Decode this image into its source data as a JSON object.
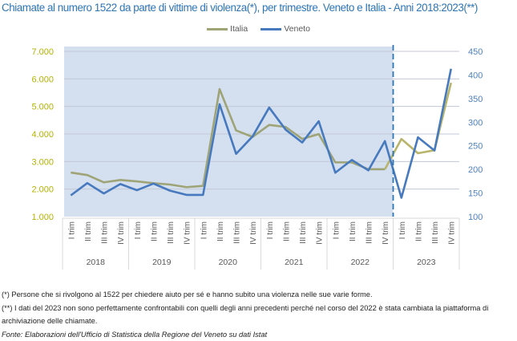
{
  "title": "Chiamate al numero 1522 da parte di vittime di violenza(*), per trimestre. Veneto e Italia - Anni 2018:2023(**)",
  "colors": {
    "title": "#2e75b6",
    "italia": "#9fa477",
    "italia_2023": "#b8b46a",
    "veneto": "#4679be",
    "shade": "#d4dff0",
    "left_axis": "#b3b300",
    "right_axis": "#4f81bd",
    "divider": "#2e75b6"
  },
  "legend": [
    {
      "label": "Italia",
      "color": "#9fa477"
    },
    {
      "label": "Veneto",
      "color": "#4679be"
    }
  ],
  "notes": [
    "(*) Persone che si rivolgono al 1522 per chiedere aiuto per sé e hanno subito una violenza nelle sue varie forme.",
    "(**) I dati del 2023 non sono perfettamente confrontabili con quelli degli anni precedenti perché nel corso del 2022 è stata cambiata la piattaforma di archiviazione delle chiamate."
  ],
  "source": "Fonte: Elaborazioni dell'Ufficio di Statistica della Regione del Veneto su dati Istat",
  "chart_data": {
    "type": "line",
    "title": "Chiamate al numero 1522 da parte di vittime di violenza(*), per trimestre. Veneto e Italia - Anni 2018:2023(**)",
    "xlabel": "",
    "ylabel": "",
    "grid": true,
    "legend_position": "top-center",
    "years": [
      "2018",
      "2019",
      "2020",
      "2021",
      "2022",
      "2023"
    ],
    "quarters": [
      "I trim",
      "II trim",
      "III trim",
      "IV trim"
    ],
    "categories": [
      "2018 I trim",
      "2018 II trim",
      "2018 III trim",
      "2018 IV trim",
      "2019 I trim",
      "2019 II trim",
      "2019 III trim",
      "2019 IV trim",
      "2020 I trim",
      "2020 II trim",
      "2020 III trim",
      "2020 IV trim",
      "2021 I trim",
      "2021 II trim",
      "2021 III trim",
      "2021 IV trim",
      "2022 I trim",
      "2022 II trim",
      "2022 III trim",
      "2022 IV trim",
      "2023 I trim",
      "2023 II trim",
      "2023 III trim",
      "2023 IV trim"
    ],
    "left_axis": {
      "series": "Italia",
      "ylim": [
        1000,
        7000
      ],
      "ticks": [
        "1.000",
        "2.000",
        "3.000",
        "4.000",
        "5.000",
        "6.000",
        "7.000"
      ],
      "tick_values": [
        1000,
        2000,
        3000,
        4000,
        5000,
        6000,
        7000
      ]
    },
    "right_axis": {
      "series": "Veneto",
      "ylim": [
        100,
        450
      ],
      "ticks": [
        "100",
        "150",
        "200",
        "250",
        "300",
        "350",
        "400",
        "450"
      ],
      "tick_values": [
        100,
        150,
        200,
        250,
        300,
        350,
        400,
        450
      ]
    },
    "shaded_region": {
      "from": "2018 I trim",
      "to": "2022 IV trim"
    },
    "divider_after": "2022 IV trim",
    "series": [
      {
        "name": "Italia",
        "axis": "left",
        "values": [
          2600,
          2510,
          2245,
          2330,
          2280,
          2215,
          2165,
          2070,
          2115,
          5630,
          4130,
          3895,
          4330,
          4255,
          3820,
          3995,
          2970,
          2970,
          2720,
          2720,
          3820,
          3300,
          3410,
          5860
        ]
      },
      {
        "name": "Veneto",
        "axis": "right",
        "values": [
          145,
          171,
          149,
          169,
          156,
          170,
          155,
          146,
          146,
          338,
          233,
          270,
          331,
          284,
          257,
          302,
          193,
          220,
          198,
          260,
          140,
          268,
          240,
          413
        ]
      }
    ]
  }
}
